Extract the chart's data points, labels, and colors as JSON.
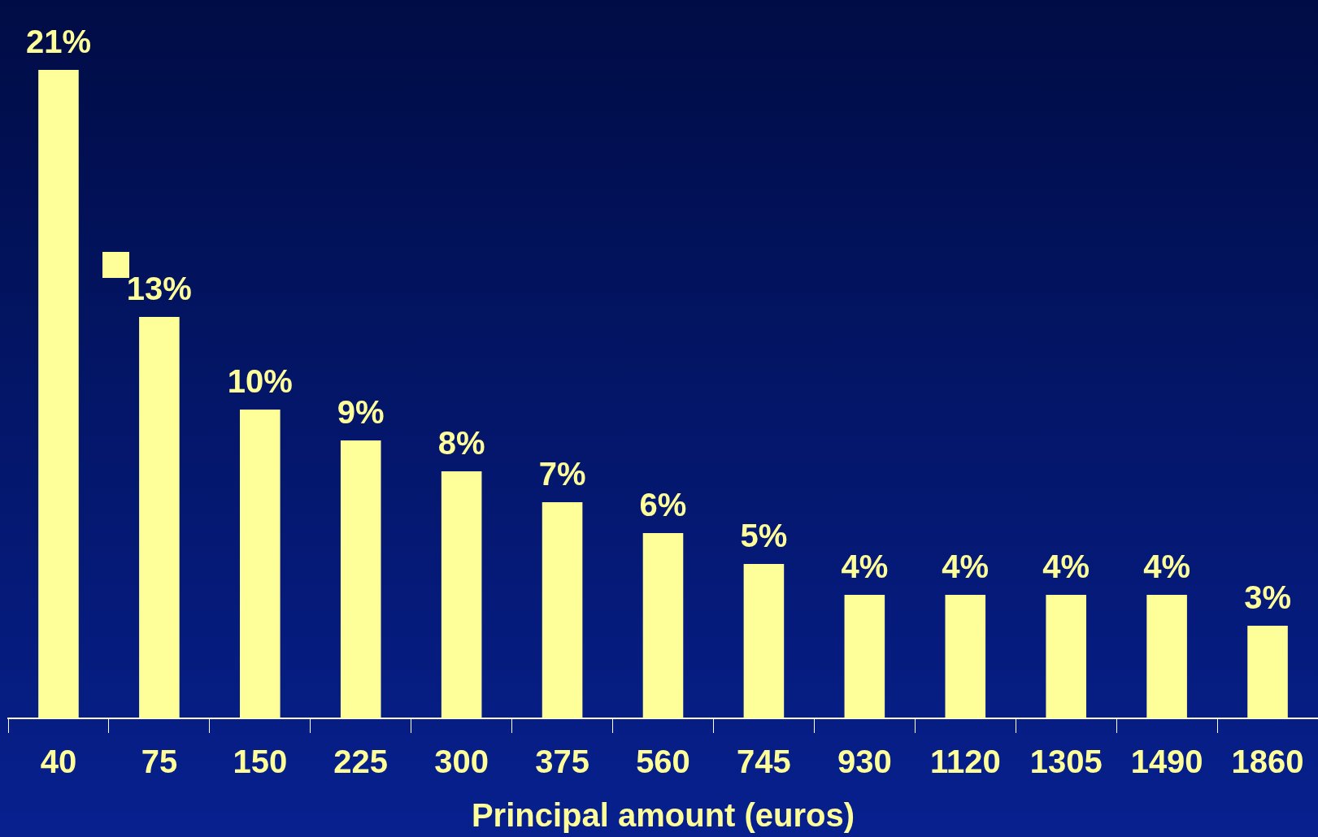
{
  "chart_data": {
    "type": "bar",
    "xlabel": "Principal amount (euros)",
    "categories": [
      "40",
      "75",
      "150",
      "225",
      "300",
      "375",
      "560",
      "745",
      "930",
      "1120",
      "1305",
      "1490",
      "1860"
    ],
    "values": [
      21,
      13,
      10,
      9,
      8,
      7,
      6,
      5,
      4,
      4,
      4,
      4,
      3
    ],
    "value_labels": [
      "21%",
      "13%",
      "10%",
      "9%",
      "8%",
      "7%",
      "6%",
      "5%",
      "4%",
      "4%",
      "4%",
      "4%",
      "3%"
    ],
    "color": "#ffff99",
    "ylim": [
      0,
      21
    ]
  }
}
